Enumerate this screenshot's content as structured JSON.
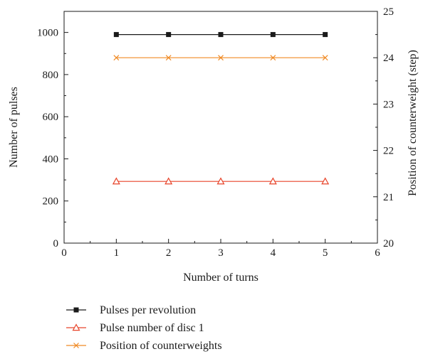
{
  "chart_data": {
    "type": "line",
    "title": "",
    "xlabel": "Number of turns",
    "ylabel_left": "Number of pulses",
    "ylabel_right": "Position of counterweight (step)",
    "xlim": [
      0,
      6
    ],
    "ylim_left": [
      0,
      1100
    ],
    "ylim_right": [
      20,
      25
    ],
    "x_ticks": [
      0,
      1,
      2,
      3,
      4,
      5,
      6
    ],
    "y_left_ticks": [
      0,
      200,
      400,
      600,
      800,
      1000
    ],
    "y_right_ticks": [
      20,
      21,
      22,
      23,
      24,
      25
    ],
    "grid": false,
    "legend_placement": "bottom",
    "x": [
      1,
      2,
      3,
      4,
      5
    ],
    "series": [
      {
        "name": "Pulses per revolution",
        "axis": "left",
        "values": [
          990,
          990,
          990,
          990,
          990
        ],
        "color": "#1a1a1a",
        "marker": "square"
      },
      {
        "name": "Pulse number of disc 1",
        "axis": "left",
        "values": [
          293,
          293,
          293,
          293,
          293
        ],
        "color": "#e8442a",
        "marker": "triangle"
      },
      {
        "name": "Position of counterweights",
        "axis": "right",
        "values": [
          24,
          24,
          24,
          24,
          24
        ],
        "color": "#f08a24",
        "marker": "x"
      }
    ]
  }
}
